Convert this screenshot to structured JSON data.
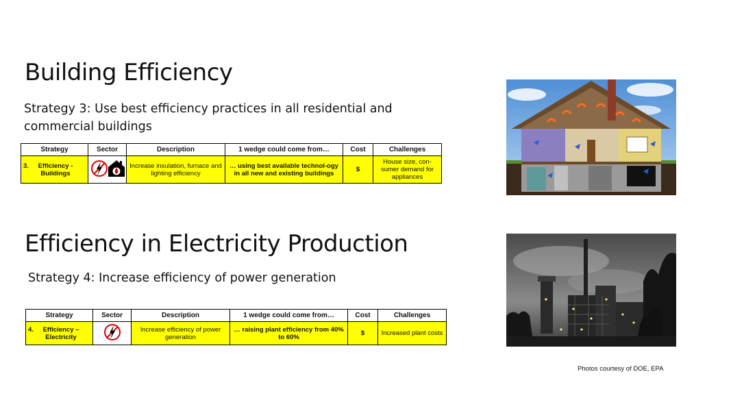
{
  "section1": {
    "title": "Building Efficiency",
    "subtitle": "Strategy 3: Use best efficiency practices in all residential and commercial buildings",
    "table": {
      "headers": [
        "Strategy",
        "Sector",
        "Description",
        "1 wedge could come from…",
        "Cost",
        "Challenges"
      ],
      "row": {
        "number": "3.",
        "strategy": "Efficiency - Buildings",
        "sector_icons": [
          "electricity-icon",
          "heating-fuel-house-icon"
        ],
        "description": "Increase insulation, furnace and lighting efficiency",
        "wedge": "… using best available technol-ogy in all new and existing buildings",
        "cost": "$",
        "challenges": "House size, con-sumer demand for appliances"
      }
    }
  },
  "section2": {
    "title": "Efficiency in Electricity Production",
    "subtitle": "Strategy 4: Increase efficiency of power generation",
    "table": {
      "headers": [
        "Strategy",
        "Sector",
        "Description",
        "1 wedge could come from…",
        "Cost",
        "Challenges"
      ],
      "row": {
        "number": "4.",
        "strategy": "Efficiency – Electricity",
        "sector_icons": [
          "electricity-icon"
        ],
        "description": "Increase efficiency of power generation",
        "wedge": "… raising plant efficiency from 40% to 60%",
        "cost": "$",
        "challenges": "Increased plant costs"
      }
    }
  },
  "credit": "Photos courtesy of DOE,  EPA",
  "colors": {
    "table_fill": "#ffff00",
    "icon_red": "#d40000"
  }
}
